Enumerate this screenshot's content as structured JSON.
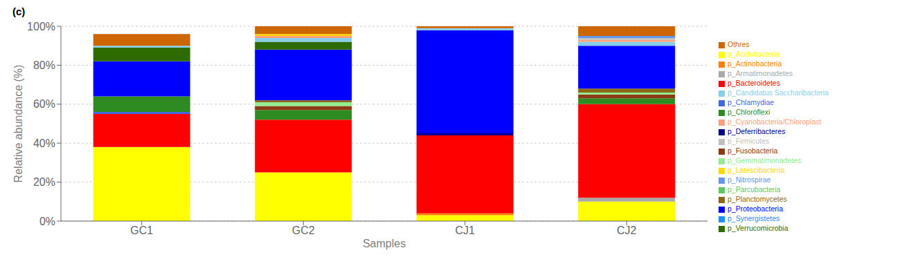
{
  "chart_data": {
    "type": "bar",
    "title": "(c)",
    "stacked": true,
    "grid": true,
    "legend": "right",
    "xlabel": "Samples",
    "ylabel": "Relative abundance (%)",
    "categories": [
      "GC1",
      "GC2",
      "CJ1",
      "CJ2"
    ],
    "ylim": [
      0,
      100
    ],
    "yticks": [
      {
        "value": 0,
        "label": "0%"
      },
      {
        "value": 20,
        "label": "20%"
      },
      {
        "value": 40,
        "label": "40%"
      },
      {
        "value": 60,
        "label": "60%"
      },
      {
        "value": 80,
        "label": "80%"
      },
      {
        "value": 100,
        "label": "100%"
      }
    ],
    "series": [
      {
        "name": "p_Acidobacteria",
        "color": "#FFFF00",
        "values": [
          38,
          25,
          3,
          10
        ]
      },
      {
        "name": "p_Actinobacteria",
        "color": "#FF8000",
        "values": [
          0,
          0,
          1,
          0
        ]
      },
      {
        "name": "p_Armatimonadetes",
        "color": "#A9A9A9",
        "values": [
          0,
          0,
          0,
          2
        ]
      },
      {
        "name": "p_Bacteroidetes",
        "color": "#FF0000",
        "values": [
          17,
          27,
          40,
          48
        ]
      },
      {
        "name": "p_Chlamydiae",
        "color": "#4169E1",
        "values": [
          1,
          0,
          0,
          0
        ]
      },
      {
        "name": "p_Chloroflexi",
        "color": "#2E8B22",
        "values": [
          8,
          5,
          0,
          3
        ]
      },
      {
        "name": "p_Deferribacteres",
        "color": "#00008B",
        "values": [
          0,
          0,
          1,
          0
        ]
      },
      {
        "name": "p_Fusobacteria",
        "color": "#8B3A13",
        "values": [
          0,
          2,
          0,
          2
        ]
      },
      {
        "name": "p_Gemmatimonadetes",
        "color": "#90EE90",
        "values": [
          0,
          2,
          0,
          1
        ]
      },
      {
        "name": "p_Planctomycetes",
        "color": "#8B6914",
        "values": [
          0,
          1,
          0,
          2
        ]
      },
      {
        "name": "p_Proteobacteria",
        "color": "#0000FF",
        "values": [
          18,
          26,
          53,
          22
        ]
      },
      {
        "name": "p_Verrucomicrobia",
        "color": "#2D6B00",
        "values": [
          7,
          4,
          0,
          0
        ]
      },
      {
        "name": "p_Candidatus Saccharibacteria",
        "color": "#87CEEB",
        "values": [
          1,
          2,
          1,
          2
        ]
      },
      {
        "name": "p_Cyanobacteria/Chloroplast",
        "color": "#FFA07A",
        "values": [
          0,
          1,
          0,
          1
        ]
      },
      {
        "name": "p_Firmicutes",
        "color": "#C0C0C0",
        "values": [
          0,
          0,
          0,
          1
        ]
      },
      {
        "name": "p_Latescibacteria",
        "color": "#FFD700",
        "values": [
          0,
          1,
          0,
          0
        ]
      },
      {
        "name": "p_Nitrospirae",
        "color": "#6495ED",
        "values": [
          0,
          0,
          0,
          1
        ]
      },
      {
        "name": "p_Parcubacteria",
        "color": "#5DC85D",
        "values": [
          0,
          0,
          0,
          0
        ]
      },
      {
        "name": "p_Synergistetes",
        "color": "#1E90FF",
        "values": [
          0,
          0,
          0,
          0
        ]
      },
      {
        "name": "Othres",
        "color": "#CD6600",
        "values": [
          6,
          4,
          1,
          5
        ]
      }
    ]
  }
}
